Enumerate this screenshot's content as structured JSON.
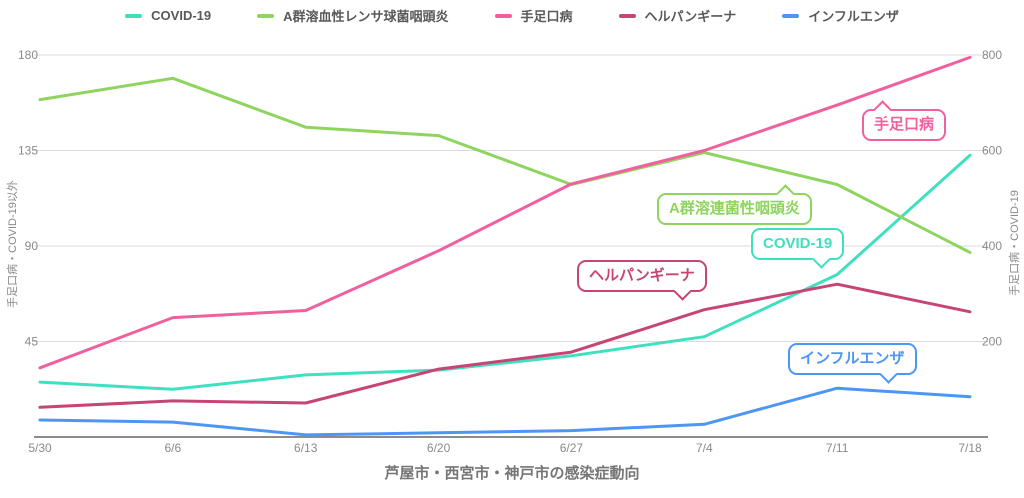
{
  "chart_data": {
    "type": "line",
    "title": "芦屋市・西宮市・神戸市の感染症動向",
    "x": [
      "5/30",
      "6/6",
      "6/13",
      "6/20",
      "6/27",
      "7/4",
      "7/11",
      "7/18"
    ],
    "series": [
      {
        "id": "covid19",
        "name": "COVID-19",
        "axis": "right",
        "color": "#3fe0bf",
        "values": [
          115,
          100,
          130,
          140,
          170,
          210,
          340,
          590
        ]
      },
      {
        "id": "strep-a",
        "name": "A群溶血性レンサ球菌咽頭炎",
        "axis": "left",
        "color": "#8ed45e",
        "values": [
          159,
          169,
          146,
          142,
          119,
          134,
          119,
          87
        ]
      },
      {
        "id": "hfmd",
        "name": "手足口病",
        "axis": "right",
        "color": "#f0609e",
        "values": [
          145,
          250,
          265,
          390,
          530,
          600,
          695,
          795
        ]
      },
      {
        "id": "herpangina",
        "name": "ヘルパンギーナ",
        "axis": "left",
        "color": "#c64574",
        "values": [
          14,
          17,
          16,
          32,
          40,
          60,
          72,
          59
        ]
      },
      {
        "id": "influenza",
        "name": "インフルエンザ",
        "axis": "left",
        "color": "#4d96f5",
        "values": [
          8,
          7,
          1,
          2,
          3,
          6,
          23,
          19
        ]
      }
    ],
    "left_axis": {
      "title": "手足口病・COVID-19以外",
      "range": [
        0,
        180
      ],
      "ticks": [
        45,
        90,
        135,
        180
      ]
    },
    "right_axis": {
      "title": "手足口病・COVID-19",
      "range": [
        0,
        800
      ],
      "ticks": [
        200,
        400,
        600,
        800
      ]
    },
    "grid": true,
    "legend_position": "top"
  },
  "callouts": [
    {
      "label": "手足口病",
      "color": "#f0609e"
    },
    {
      "label": "A群溶連菌性咽頭炎",
      "color": "#8ed45e"
    },
    {
      "label": "COVID-19",
      "color": "#3fe0bf"
    },
    {
      "label": "ヘルパンギーナ",
      "color": "#c64574"
    },
    {
      "label": "インフルエンザ",
      "color": "#4d96f5"
    }
  ],
  "colors": {
    "grid": "#dbdbdb",
    "axis_line": "#8c8c8c",
    "tick_label": "#8a8a8a",
    "title": "#757575",
    "legend_text": "#595959"
  }
}
